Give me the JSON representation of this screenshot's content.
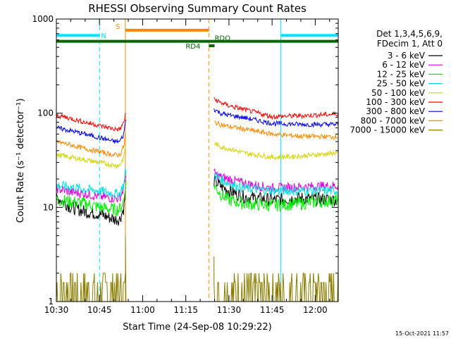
{
  "chart_data": {
    "type": "line",
    "title": "RHESSI Observing Summary Count Rates",
    "xlabel": "Start Time (24-Sep-08 10:29:22)",
    "ylabel": "Count Rate (s⁻¹ detector⁻¹)",
    "yscale": "log",
    "ylim": [
      1,
      1000
    ],
    "xlim_minutes": [
      0,
      98
    ],
    "x_ticks": [
      {
        "m": 0,
        "label": "10:30"
      },
      {
        "m": 15,
        "label": "10:45"
      },
      {
        "m": 30,
        "label": "11:00"
      },
      {
        "m": 45,
        "label": "11:15"
      },
      {
        "m": 60,
        "label": "11:30"
      },
      {
        "m": 75,
        "label": "11:45"
      },
      {
        "m": 90,
        "label": "12:00"
      }
    ],
    "y_ticks": [
      {
        "v": 1,
        "label": "1"
      },
      {
        "v": 10,
        "label": "10"
      },
      {
        "v": 100,
        "label": "100"
      },
      {
        "v": 1000,
        "label": "1000"
      }
    ],
    "legend_header": [
      "Det 1,3,4,5,6,9,",
      "FDecim 1, Att 0"
    ],
    "legend_position": "right",
    "series": [
      {
        "name": "3 - 6 keV",
        "color": "#000000",
        "pre": [
          [
            0,
            13
          ],
          [
            5,
            10
          ],
          [
            10,
            9
          ],
          [
            15,
            8.5
          ],
          [
            20,
            7.5
          ],
          [
            22,
            7.5
          ],
          [
            23.5,
            10
          ],
          [
            24,
            15
          ]
        ],
        "post": [
          [
            55,
            19
          ],
          [
            57,
            17
          ],
          [
            60,
            15
          ],
          [
            65,
            13
          ],
          [
            75,
            12
          ],
          [
            85,
            12.5
          ],
          [
            98,
            12
          ]
        ]
      },
      {
        "name": "6 - 12 keV",
        "color": "#e000e0",
        "pre": [
          [
            0,
            16
          ],
          [
            5,
            14.5
          ],
          [
            10,
            14
          ],
          [
            15,
            13
          ],
          [
            20,
            12.5
          ],
          [
            22,
            12.5
          ],
          [
            23.5,
            16
          ],
          [
            24,
            22
          ]
        ],
        "post": [
          [
            55,
            23
          ],
          [
            57,
            21
          ],
          [
            60,
            20
          ],
          [
            65,
            18
          ],
          [
            75,
            16
          ],
          [
            85,
            16.5
          ],
          [
            98,
            17
          ]
        ]
      },
      {
        "name": "12 - 25 keV",
        "color": "#00ee00",
        "pre": [
          [
            0,
            12
          ],
          [
            5,
            11.5
          ],
          [
            10,
            11
          ],
          [
            15,
            10
          ],
          [
            20,
            9.5
          ],
          [
            22,
            9.5
          ],
          [
            23.5,
            12
          ],
          [
            24,
            18
          ]
        ],
        "post": [
          [
            55,
            17
          ],
          [
            57,
            14
          ],
          [
            60,
            12
          ],
          [
            65,
            11
          ],
          [
            75,
            10.5
          ],
          [
            85,
            11
          ],
          [
            98,
            12
          ]
        ]
      },
      {
        "name": "25 - 50 keV",
        "color": "#00e0e0",
        "pre": [
          [
            0,
            17
          ],
          [
            5,
            16.5
          ],
          [
            10,
            15.5
          ],
          [
            15,
            15
          ],
          [
            20,
            14
          ],
          [
            22,
            14
          ],
          [
            23.5,
            18
          ],
          [
            24,
            24
          ]
        ],
        "post": [
          [
            55,
            22
          ],
          [
            57,
            20
          ],
          [
            60,
            18
          ],
          [
            65,
            16
          ],
          [
            75,
            15
          ],
          [
            85,
            15
          ],
          [
            98,
            15
          ]
        ]
      },
      {
        "name": "50 - 100 keV",
        "color": "#d4d400",
        "pre": [
          [
            0,
            36
          ],
          [
            5,
            34
          ],
          [
            10,
            32
          ],
          [
            15,
            30
          ],
          [
            20,
            28
          ],
          [
            22,
            28
          ],
          [
            23.5,
            34
          ],
          [
            24,
            45
          ]
        ],
        "post": [
          [
            55,
            48
          ],
          [
            57,
            44
          ],
          [
            60,
            42
          ],
          [
            65,
            38
          ],
          [
            75,
            34
          ],
          [
            85,
            35
          ],
          [
            98,
            38
          ]
        ]
      },
      {
        "name": "100 - 300 keV",
        "color": "#ff0000",
        "pre": [
          [
            0,
            95
          ],
          [
            5,
            88
          ],
          [
            10,
            80
          ],
          [
            15,
            74
          ],
          [
            20,
            68
          ],
          [
            22,
            67
          ],
          [
            23.5,
            80
          ],
          [
            24,
            100
          ]
        ],
        "post": [
          [
            55,
            140
          ],
          [
            57,
            130
          ],
          [
            60,
            120
          ],
          [
            65,
            110
          ],
          [
            75,
            92
          ],
          [
            85,
            94
          ],
          [
            98,
            98
          ]
        ]
      },
      {
        "name": "300 - 800 keV",
        "color": "#0000ee",
        "pre": [
          [
            0,
            70
          ],
          [
            5,
            65
          ],
          [
            10,
            60
          ],
          [
            15,
            55
          ],
          [
            20,
            50
          ],
          [
            22,
            50
          ],
          [
            23.5,
            60
          ],
          [
            24,
            85
          ]
        ],
        "post": [
          [
            55,
            110
          ],
          [
            57,
            100
          ],
          [
            60,
            95
          ],
          [
            65,
            90
          ],
          [
            75,
            78
          ],
          [
            85,
            76
          ],
          [
            98,
            76
          ]
        ]
      },
      {
        "name": "800 - 7000 keV",
        "color": "#ff8800",
        "pre": [
          [
            0,
            50
          ],
          [
            5,
            46
          ],
          [
            10,
            42
          ],
          [
            15,
            39
          ],
          [
            20,
            36
          ],
          [
            22,
            36
          ],
          [
            23.5,
            45
          ],
          [
            24,
            60
          ]
        ],
        "post": [
          [
            55,
            80
          ],
          [
            57,
            76
          ],
          [
            60,
            72
          ],
          [
            65,
            68
          ],
          [
            75,
            60
          ],
          [
            85,
            57
          ],
          [
            98,
            56
          ]
        ]
      },
      {
        "name": "7000 - 15000 keV",
        "color": "#8b7d00",
        "pre": [
          [
            0,
            1.7
          ],
          [
            5,
            1.5
          ],
          [
            10,
            1.4
          ],
          [
            15,
            1.4
          ],
          [
            20,
            1.3
          ]
        ],
        "post": [
          [
            55,
            1.6
          ],
          [
            60,
            1.3
          ],
          [
            65,
            1.2
          ],
          [
            90,
            1.5
          ],
          [
            98,
            1.8
          ]
        ]
      }
    ],
    "bars": [
      {
        "label": "N",
        "color": "#00e6ff",
        "m": 15,
        "y": 670,
        "segments": [
          [
            0,
            15
          ],
          [
            78,
            98
          ]
        ]
      },
      {
        "label": "S",
        "color": "#ff8800",
        "m": 24,
        "y": 760,
        "segments": [
          [
            24,
            53
          ]
        ]
      },
      {
        "label": "RD4",
        "color": "#006600",
        "m": 53,
        "y": 520,
        "segments": [
          [
            53,
            55
          ]
        ]
      },
      {
        "label": "RDO",
        "color": "#006600",
        "m": 55,
        "y": 580,
        "segments": [
          [
            0,
            98
          ]
        ]
      }
    ],
    "vlines": [
      {
        "m": 0,
        "color": "#00e6ff",
        "dash": false
      },
      {
        "m": 15,
        "color": "#00e6ff",
        "dash": true
      },
      {
        "m": 24,
        "color": "#ff8800",
        "dash": false
      },
      {
        "m": 53,
        "color": "#ff8800",
        "dash": true
      },
      {
        "m": 78,
        "color": "#00e6ff",
        "dash": false
      },
      {
        "m": 98,
        "color": "#00e6ff",
        "dash": true
      }
    ],
    "gap_minutes": [
      24.5,
      54.5
    ]
  },
  "footer": {
    "timestamp": "15-Oct-2021 11:57"
  }
}
